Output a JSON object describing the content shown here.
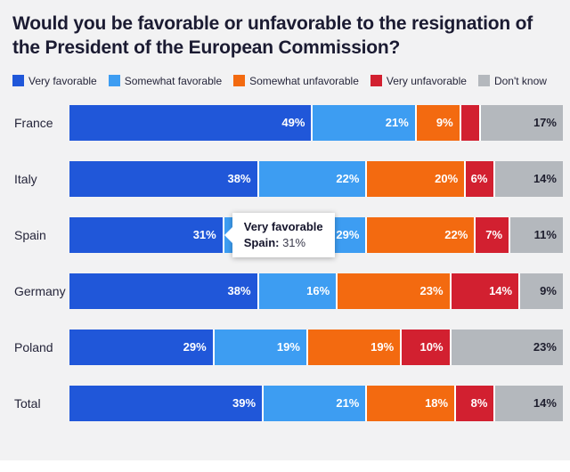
{
  "title": "Would you be favorable or unfavorable to the resignation of the President of the European Commission?",
  "colors": {
    "very_favorable": "#2057d9",
    "somewhat_favorable": "#3d9df2",
    "somewhat_unfavorable": "#f36a10",
    "very_unfavorable": "#d22030",
    "dont_know": "#b4b8bd",
    "background": "#f2f2f3",
    "title_text": "#1b1b32"
  },
  "chart_data": {
    "type": "bar",
    "stacked": true,
    "orientation": "horizontal",
    "x_range_pct": [
      0,
      100
    ],
    "legend_position": "top",
    "grid": false,
    "label_hidden_below_pct": 5,
    "categories": [
      "France",
      "Italy",
      "Spain",
      "Germany",
      "Poland",
      "Total"
    ],
    "series": [
      {
        "name": "Very favorable",
        "color": "#2057d9",
        "label_color": "light",
        "values": [
          49,
          38,
          31,
          38,
          29,
          39
        ]
      },
      {
        "name": "Somewhat favorable",
        "color": "#3d9df2",
        "label_color": "light",
        "values": [
          21,
          22,
          29,
          16,
          19,
          21
        ]
      },
      {
        "name": "Somewhat unfavorable",
        "color": "#f36a10",
        "label_color": "light",
        "values": [
          9,
          20,
          22,
          23,
          19,
          18
        ]
      },
      {
        "name": "Very unfavorable",
        "color": "#d22030",
        "label_color": "light",
        "values": [
          4,
          6,
          7,
          14,
          10,
          8
        ]
      },
      {
        "name": "Don't know",
        "color": "#b4b8bd",
        "label_color": "dark",
        "values": [
          17,
          14,
          11,
          9,
          23,
          14
        ]
      }
    ],
    "tooltip": {
      "category": "Spain",
      "title": "Very favorable",
      "label": "Spain:",
      "value": "31%",
      "anchor_pct": 31
    }
  }
}
